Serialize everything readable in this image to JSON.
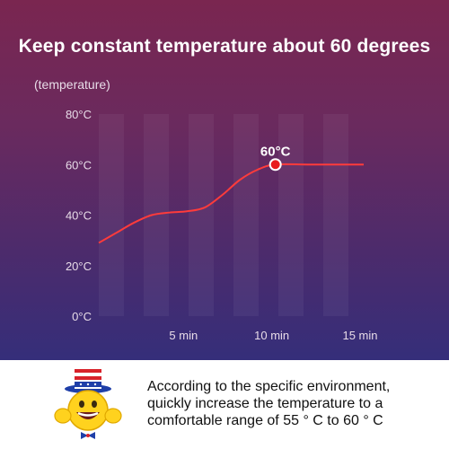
{
  "chart_data": {
    "type": "line",
    "title": "Keep constant temperature about 60 degrees",
    "ylabel": "(temperature)",
    "xlabel": "",
    "y_ticks": [
      "0°C",
      "20°C",
      "40°C",
      "60°C",
      "80°C"
    ],
    "ylim": [
      0,
      80
    ],
    "x_ticks": [
      "5 min",
      "10 min",
      "15 min"
    ],
    "x_tick_values": [
      5,
      10,
      15
    ],
    "xlim": [
      0,
      15
    ],
    "series": [
      {
        "values": [
          {
            "x": 0,
            "y": 29
          },
          {
            "x": 1,
            "y": 33
          },
          {
            "x": 2,
            "y": 37
          },
          {
            "x": 3,
            "y": 40
          },
          {
            "x": 4,
            "y": 41
          },
          {
            "x": 5,
            "y": 41.5
          },
          {
            "x": 6,
            "y": 43
          },
          {
            "x": 7,
            "y": 48
          },
          {
            "x": 8,
            "y": 54
          },
          {
            "x": 9,
            "y": 58
          },
          {
            "x": 10,
            "y": 60
          },
          {
            "x": 12,
            "y": 60
          },
          {
            "x": 15,
            "y": 60
          }
        ]
      }
    ],
    "highlight": {
      "x": 10,
      "y": 60,
      "label": "60°C"
    },
    "grid": "vertical bands",
    "colors": {
      "line": "#ff3b3b",
      "marker": "#e81c1c",
      "text": "#ffffff"
    }
  },
  "footer": {
    "text": "According to the specific environment, quickly increase the temperature to a comfortable range of 55 ° C to 60 ° C"
  },
  "mascot": {
    "icon": "uncle-sam-emoji-icon"
  }
}
